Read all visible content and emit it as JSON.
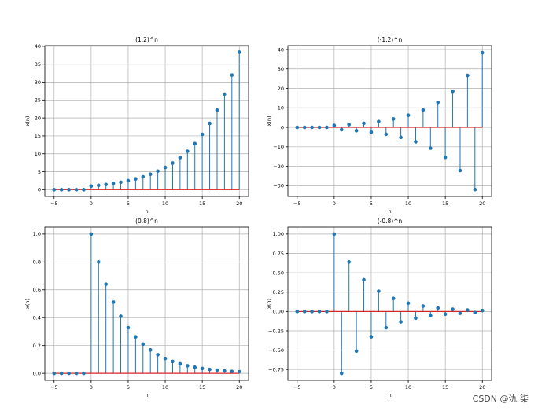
{
  "watermark": "CSDN @氿 柒",
  "colors": {
    "stem": "#1f77b4",
    "baseline": "#d62728",
    "grid": "#b0b0b0",
    "axis": "#000000"
  },
  "chart_data": [
    {
      "type": "stem",
      "title": "(1.2)^n",
      "xlabel": "n",
      "ylabel": "x(n)",
      "xlim": [
        -6.25,
        21.25
      ],
      "ylim": [
        -1.9,
        40.2
      ],
      "xticks": [
        -5,
        0,
        5,
        10,
        15,
        20
      ],
      "xtick_labels": [
        "−5",
        "0",
        "5",
        "10",
        "15",
        "20"
      ],
      "yticks": [
        0,
        5,
        10,
        15,
        20,
        25,
        30,
        35,
        40
      ],
      "ytick_labels": [
        "0",
        "5",
        "10",
        "15",
        "20",
        "25",
        "30",
        "35",
        "40"
      ],
      "grid": true,
      "baseline": 0,
      "x": [
        -5,
        -4,
        -3,
        -2,
        -1,
        0,
        1,
        2,
        3,
        4,
        5,
        6,
        7,
        8,
        9,
        10,
        11,
        12,
        13,
        14,
        15,
        16,
        17,
        18,
        19,
        20
      ],
      "y": [
        0,
        0,
        0,
        0,
        0,
        1,
        1.2,
        1.44,
        1.73,
        2.07,
        2.49,
        2.99,
        3.58,
        4.3,
        5.16,
        6.19,
        7.43,
        8.92,
        10.7,
        12.84,
        15.41,
        18.49,
        22.19,
        26.62,
        31.95,
        38.34
      ]
    },
    {
      "type": "stem",
      "title": "(-1.2)^n",
      "xlabel": "n",
      "ylabel": "x(n)",
      "xlim": [
        -6.25,
        21.25
      ],
      "ylim": [
        -35.5,
        42
      ],
      "xticks": [
        -5,
        0,
        5,
        10,
        15,
        20
      ],
      "xtick_labels": [
        "−5",
        "0",
        "5",
        "10",
        "15",
        "20"
      ],
      "yticks": [
        -30,
        -20,
        -10,
        0,
        10,
        20,
        30,
        40
      ],
      "ytick_labels": [
        "−30",
        "−20",
        "−10",
        "0",
        "10",
        "20",
        "30",
        "40"
      ],
      "grid": true,
      "baseline": 0,
      "x": [
        -5,
        -4,
        -3,
        -2,
        -1,
        0,
        1,
        2,
        3,
        4,
        5,
        6,
        7,
        8,
        9,
        10,
        11,
        12,
        13,
        14,
        15,
        16,
        17,
        18,
        19,
        20
      ],
      "y": [
        0,
        0,
        0,
        0,
        0,
        1,
        -1.2,
        1.44,
        -1.73,
        2.07,
        -2.49,
        2.99,
        -3.58,
        4.3,
        -5.16,
        6.19,
        -7.43,
        8.92,
        -10.7,
        12.84,
        -15.41,
        18.49,
        -22.19,
        26.62,
        -31.95,
        38.34
      ]
    },
    {
      "type": "stem",
      "title": "(0.8)^n",
      "xlabel": "n",
      "ylabel": "x(n)",
      "xlim": [
        -6.25,
        21.25
      ],
      "ylim": [
        -0.05,
        1.05
      ],
      "xticks": [
        -5,
        0,
        5,
        10,
        15,
        20
      ],
      "xtick_labels": [
        "−5",
        "0",
        "5",
        "10",
        "15",
        "20"
      ],
      "yticks": [
        0,
        0.2,
        0.4,
        0.6,
        0.8,
        1.0
      ],
      "ytick_labels": [
        "0.0",
        "0.2",
        "0.4",
        "0.6",
        "0.8",
        "1.0"
      ],
      "grid": true,
      "baseline": 0,
      "x": [
        -5,
        -4,
        -3,
        -2,
        -1,
        0,
        1,
        2,
        3,
        4,
        5,
        6,
        7,
        8,
        9,
        10,
        11,
        12,
        13,
        14,
        15,
        16,
        17,
        18,
        19,
        20
      ],
      "y": [
        0,
        0,
        0,
        0,
        0,
        1,
        0.8,
        0.64,
        0.512,
        0.41,
        0.328,
        0.262,
        0.21,
        0.168,
        0.134,
        0.107,
        0.086,
        0.069,
        0.055,
        0.044,
        0.035,
        0.028,
        0.023,
        0.018,
        0.014,
        0.012
      ]
    },
    {
      "type": "stem",
      "title": "(-0.8)^n",
      "xlabel": "n",
      "ylabel": "x(n)",
      "xlim": [
        -6.25,
        21.25
      ],
      "ylim": [
        -0.89,
        1.09
      ],
      "xticks": [
        -5,
        0,
        5,
        10,
        15,
        20
      ],
      "xtick_labels": [
        "−5",
        "0",
        "5",
        "10",
        "15",
        "20"
      ],
      "yticks": [
        -0.75,
        -0.5,
        -0.25,
        0,
        0.25,
        0.5,
        0.75,
        1.0
      ],
      "ytick_labels": [
        "−0.75",
        "−0.50",
        "−0.25",
        "0.00",
        "0.25",
        "0.50",
        "0.75",
        "1.00"
      ],
      "grid": true,
      "baseline": 0,
      "x": [
        -5,
        -4,
        -3,
        -2,
        -1,
        0,
        1,
        2,
        3,
        4,
        5,
        6,
        7,
        8,
        9,
        10,
        11,
        12,
        13,
        14,
        15,
        16,
        17,
        18,
        19,
        20
      ],
      "y": [
        0,
        0,
        0,
        0,
        0,
        1,
        -0.8,
        0.64,
        -0.512,
        0.41,
        -0.328,
        0.262,
        -0.21,
        0.168,
        -0.134,
        0.107,
        -0.086,
        0.069,
        -0.055,
        0.044,
        -0.035,
        0.028,
        -0.023,
        0.018,
        -0.014,
        0.012
      ]
    }
  ]
}
